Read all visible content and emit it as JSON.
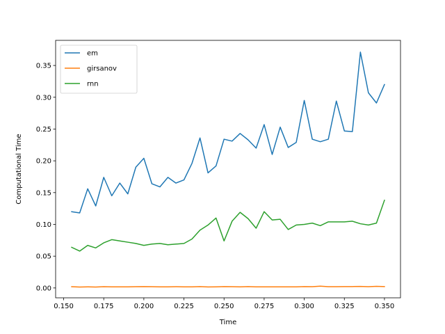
{
  "chart_data": {
    "type": "line",
    "title": "",
    "xlabel": "Time",
    "ylabel": "Computational Time",
    "xlim": [
      0.145,
      0.36
    ],
    "ylim": [
      -0.0155,
      0.3895
    ],
    "xticks": [
      0.15,
      0.175,
      0.2,
      0.225,
      0.25,
      0.275,
      0.3,
      0.325,
      0.35
    ],
    "xtick_labels": [
      "0.150",
      "0.175",
      "0.200",
      "0.225",
      "0.250",
      "0.275",
      "0.300",
      "0.325",
      "0.350"
    ],
    "yticks": [
      0.0,
      0.05,
      0.1,
      0.15,
      0.2,
      0.25,
      0.3,
      0.35
    ],
    "ytick_labels": [
      "0.00",
      "0.05",
      "0.10",
      "0.15",
      "0.20",
      "0.25",
      "0.30",
      "0.35"
    ],
    "grid": false,
    "legend_position": "top-left",
    "x": [
      0.155,
      0.16,
      0.165,
      0.17,
      0.175,
      0.18,
      0.185,
      0.19,
      0.195,
      0.2,
      0.205,
      0.21,
      0.215,
      0.22,
      0.225,
      0.23,
      0.235,
      0.24,
      0.245,
      0.25,
      0.255,
      0.26,
      0.265,
      0.27,
      0.275,
      0.28,
      0.285,
      0.29,
      0.295,
      0.3,
      0.305,
      0.31,
      0.315,
      0.32,
      0.325,
      0.33,
      0.335,
      0.34,
      0.345,
      0.35
    ],
    "series": [
      {
        "name": "em",
        "color": "#1f77b4",
        "values": [
          0.12,
          0.118,
          0.156,
          0.129,
          0.174,
          0.145,
          0.165,
          0.148,
          0.19,
          0.204,
          0.164,
          0.159,
          0.174,
          0.165,
          0.17,
          0.196,
          0.236,
          0.181,
          0.192,
          0.234,
          0.231,
          0.243,
          0.233,
          0.22,
          0.257,
          0.21,
          0.253,
          0.221,
          0.229,
          0.295,
          0.234,
          0.23,
          0.234,
          0.294,
          0.247,
          0.246,
          0.371,
          0.307,
          0.291,
          0.32
        ]
      },
      {
        "name": "girsanov",
        "color": "#ff7f0e",
        "values": [
          0.002,
          0.0015,
          0.0018,
          0.0015,
          0.002,
          0.0017,
          0.0017,
          0.0018,
          0.002,
          0.0022,
          0.002,
          0.0018,
          0.0018,
          0.002,
          0.0018,
          0.0018,
          0.0022,
          0.0016,
          0.0018,
          0.0022,
          0.002,
          0.0018,
          0.0022,
          0.0018,
          0.0018,
          0.0018,
          0.0018,
          0.0018,
          0.0018,
          0.0022,
          0.002,
          0.0028,
          0.002,
          0.002,
          0.0022,
          0.0022,
          0.0024,
          0.002,
          0.0026,
          0.0022
        ]
      },
      {
        "name": "rnn",
        "color": "#2ca02c",
        "values": [
          0.064,
          0.058,
          0.067,
          0.063,
          0.071,
          0.076,
          0.074,
          0.072,
          0.07,
          0.067,
          0.069,
          0.07,
          0.068,
          0.069,
          0.07,
          0.077,
          0.091,
          0.099,
          0.11,
          0.074,
          0.105,
          0.119,
          0.109,
          0.094,
          0.12,
          0.107,
          0.108,
          0.092,
          0.099,
          0.1,
          0.102,
          0.098,
          0.104,
          0.104,
          0.104,
          0.105,
          0.101,
          0.099,
          0.102,
          0.138
        ]
      }
    ]
  }
}
